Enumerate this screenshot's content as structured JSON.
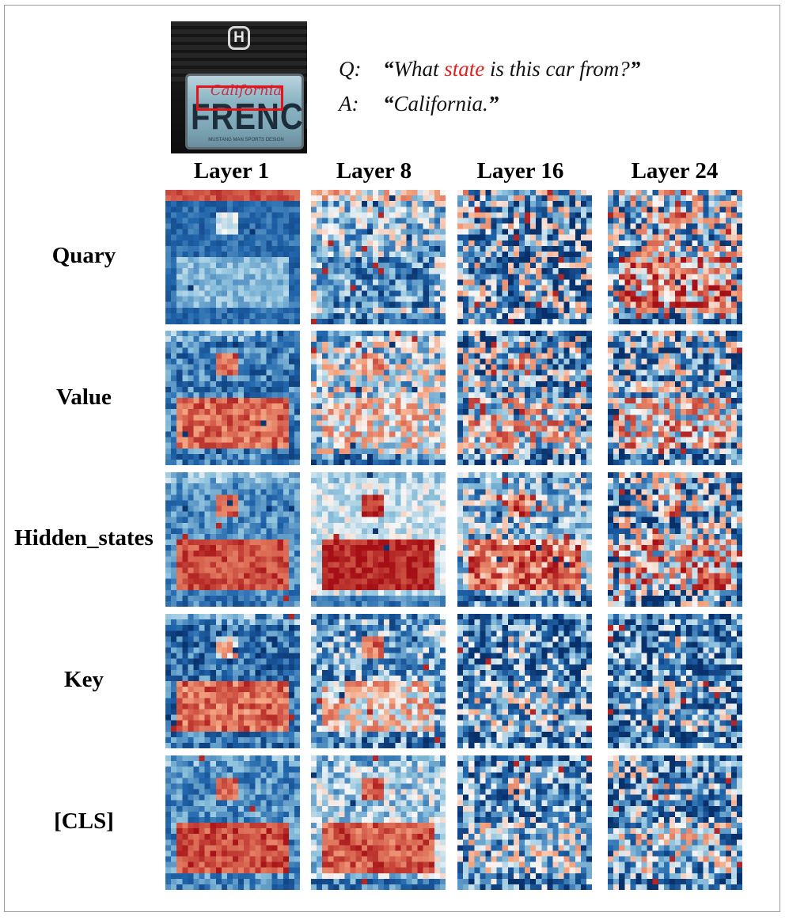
{
  "question": {
    "role": "Q:",
    "text_before": "What ",
    "keyword": "state",
    "text_after": " is this car from?",
    "keyword_color": "#e02020"
  },
  "answer": {
    "role": "A:",
    "text": "California."
  },
  "photo": {
    "emblem": "H",
    "plate_state": "California",
    "plate_text": "FRENCH",
    "plate_footer": "MUSTANG MAN SPORTS DESIGN",
    "highlight_color": "#e5141a"
  },
  "columns": [
    "Layer 1",
    "Layer 8",
    "Layer 16",
    "Layer 24"
  ],
  "rows": [
    "Quary",
    "Value",
    "Hidden_states",
    "Key",
    "[CLS]"
  ],
  "colormap": {
    "name": "RdBu_r",
    "low": "#08306b",
    "mid": "#f7f7f7",
    "high": "#a50f15"
  }
}
